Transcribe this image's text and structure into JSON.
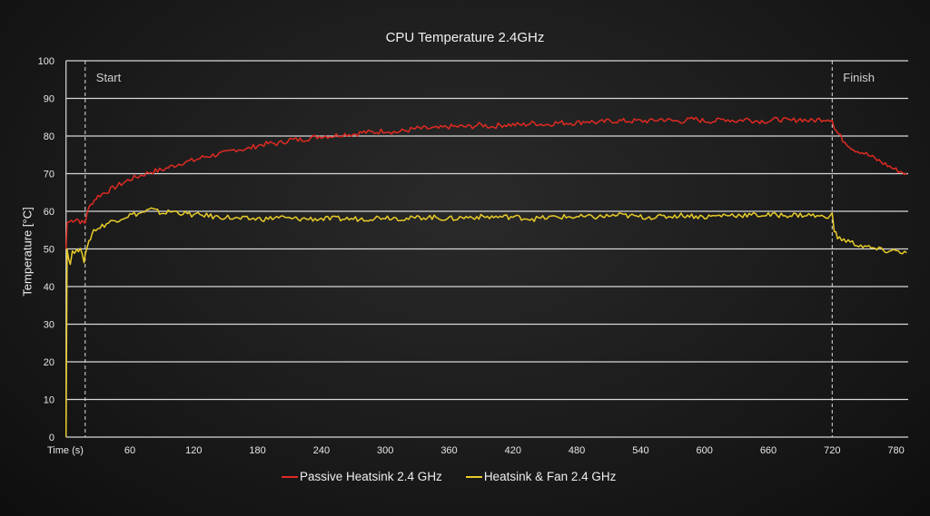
{
  "chart_data": {
    "type": "line",
    "title": "CPU Temperature 2.4GHz",
    "xlabel": "Time (s)",
    "ylabel": "Temperature [°C]",
    "xlim": [
      0,
      790
    ],
    "ylim": [
      0,
      100
    ],
    "x_ticks": [
      60,
      120,
      180,
      240,
      300,
      360,
      420,
      480,
      540,
      600,
      660,
      720,
      780
    ],
    "y_ticks": [
      0,
      10,
      20,
      30,
      40,
      50,
      60,
      70,
      80,
      90,
      100
    ],
    "grid": "horizontal",
    "legend": "bottom",
    "annotations": [
      {
        "label": "Start",
        "x": 18
      },
      {
        "label": "Finish",
        "x": 720
      }
    ],
    "series": [
      {
        "name": "Passive Heatsink 2.4 GHz",
        "color": "#e02a22",
        "points": [
          [
            0,
            50
          ],
          [
            1,
            57
          ],
          [
            5,
            57.5
          ],
          [
            10,
            58
          ],
          [
            15,
            57
          ],
          [
            18,
            57
          ],
          [
            20,
            60
          ],
          [
            25,
            62.5
          ],
          [
            30,
            64
          ],
          [
            40,
            65.5
          ],
          [
            50,
            67
          ],
          [
            60,
            68.5
          ],
          [
            70,
            69.5
          ],
          [
            80,
            70.5
          ],
          [
            90,
            71
          ],
          [
            100,
            72
          ],
          [
            110,
            73
          ],
          [
            120,
            73.5
          ],
          [
            130,
            74.5
          ],
          [
            140,
            75
          ],
          [
            150,
            75.5
          ],
          [
            160,
            76.5
          ],
          [
            170,
            76.5
          ],
          [
            180,
            77.5
          ],
          [
            190,
            78
          ],
          [
            200,
            78
          ],
          [
            210,
            79
          ],
          [
            220,
            79
          ],
          [
            230,
            79.5
          ],
          [
            240,
            80
          ],
          [
            250,
            80
          ],
          [
            260,
            80.5
          ],
          [
            270,
            80.5
          ],
          [
            280,
            81
          ],
          [
            290,
            81
          ],
          [
            300,
            81.5
          ],
          [
            310,
            81
          ],
          [
            320,
            81.5
          ],
          [
            330,
            82
          ],
          [
            340,
            82
          ],
          [
            350,
            82
          ],
          [
            360,
            82.5
          ],
          [
            370,
            82.5
          ],
          [
            380,
            82.5
          ],
          [
            390,
            83
          ],
          [
            400,
            82.5
          ],
          [
            410,
            83
          ],
          [
            420,
            83
          ],
          [
            430,
            83
          ],
          [
            440,
            83.5
          ],
          [
            450,
            83
          ],
          [
            460,
            83.5
          ],
          [
            470,
            83.5
          ],
          [
            480,
            83.5
          ],
          [
            490,
            84
          ],
          [
            500,
            83.5
          ],
          [
            510,
            84
          ],
          [
            520,
            84
          ],
          [
            530,
            84
          ],
          [
            540,
            84
          ],
          [
            550,
            84
          ],
          [
            560,
            84.5
          ],
          [
            570,
            84
          ],
          [
            580,
            84
          ],
          [
            590,
            84.5
          ],
          [
            600,
            84
          ],
          [
            610,
            84
          ],
          [
            620,
            84.5
          ],
          [
            630,
            84
          ],
          [
            640,
            84.5
          ],
          [
            650,
            84
          ],
          [
            660,
            84
          ],
          [
            670,
            84.5
          ],
          [
            680,
            84
          ],
          [
            690,
            84.5
          ],
          [
            700,
            84
          ],
          [
            710,
            84.5
          ],
          [
            720,
            84.5
          ],
          [
            722,
            82
          ],
          [
            730,
            79
          ],
          [
            740,
            76.5
          ],
          [
            750,
            75.5
          ],
          [
            760,
            74
          ],
          [
            770,
            72.5
          ],
          [
            780,
            71
          ],
          [
            790,
            70
          ]
        ]
      },
      {
        "name": "Heatsink & Fan 2.4 GHz",
        "color": "#e8cc2a",
        "points": [
          [
            0,
            0
          ],
          [
            1,
            50
          ],
          [
            4,
            46
          ],
          [
            6,
            49.5
          ],
          [
            10,
            49.5
          ],
          [
            15,
            49.5
          ],
          [
            17,
            47
          ],
          [
            18,
            49
          ],
          [
            20,
            50
          ],
          [
            23,
            53
          ],
          [
            26,
            55
          ],
          [
            30,
            55.5
          ],
          [
            40,
            57
          ],
          [
            50,
            58
          ],
          [
            60,
            59
          ],
          [
            70,
            59.5
          ],
          [
            80,
            60.5
          ],
          [
            90,
            59.5
          ],
          [
            100,
            60
          ],
          [
            110,
            59.5
          ],
          [
            120,
            59
          ],
          [
            130,
            59
          ],
          [
            140,
            58.5
          ],
          [
            150,
            58.5
          ],
          [
            160,
            58
          ],
          [
            170,
            58
          ],
          [
            180,
            58
          ],
          [
            190,
            58
          ],
          [
            200,
            58.5
          ],
          [
            210,
            58
          ],
          [
            220,
            58
          ],
          [
            230,
            58
          ],
          [
            240,
            58
          ],
          [
            260,
            58
          ],
          [
            280,
            58
          ],
          [
            300,
            58.5
          ],
          [
            320,
            58
          ],
          [
            340,
            58.5
          ],
          [
            360,
            58
          ],
          [
            380,
            58.5
          ],
          [
            400,
            58.5
          ],
          [
            420,
            58.5
          ],
          [
            440,
            58
          ],
          [
            460,
            58.5
          ],
          [
            480,
            58.5
          ],
          [
            500,
            58.5
          ],
          [
            520,
            59
          ],
          [
            540,
            58.5
          ],
          [
            560,
            58.5
          ],
          [
            580,
            59
          ],
          [
            600,
            58.5
          ],
          [
            620,
            59
          ],
          [
            640,
            59
          ],
          [
            660,
            59
          ],
          [
            680,
            59
          ],
          [
            700,
            59
          ],
          [
            710,
            58.5
          ],
          [
            720,
            59
          ],
          [
            722,
            55
          ],
          [
            725,
            53
          ],
          [
            735,
            52
          ],
          [
            745,
            51
          ],
          [
            760,
            50
          ],
          [
            770,
            49.5
          ],
          [
            780,
            49.5
          ],
          [
            790,
            49
          ]
        ]
      }
    ]
  }
}
